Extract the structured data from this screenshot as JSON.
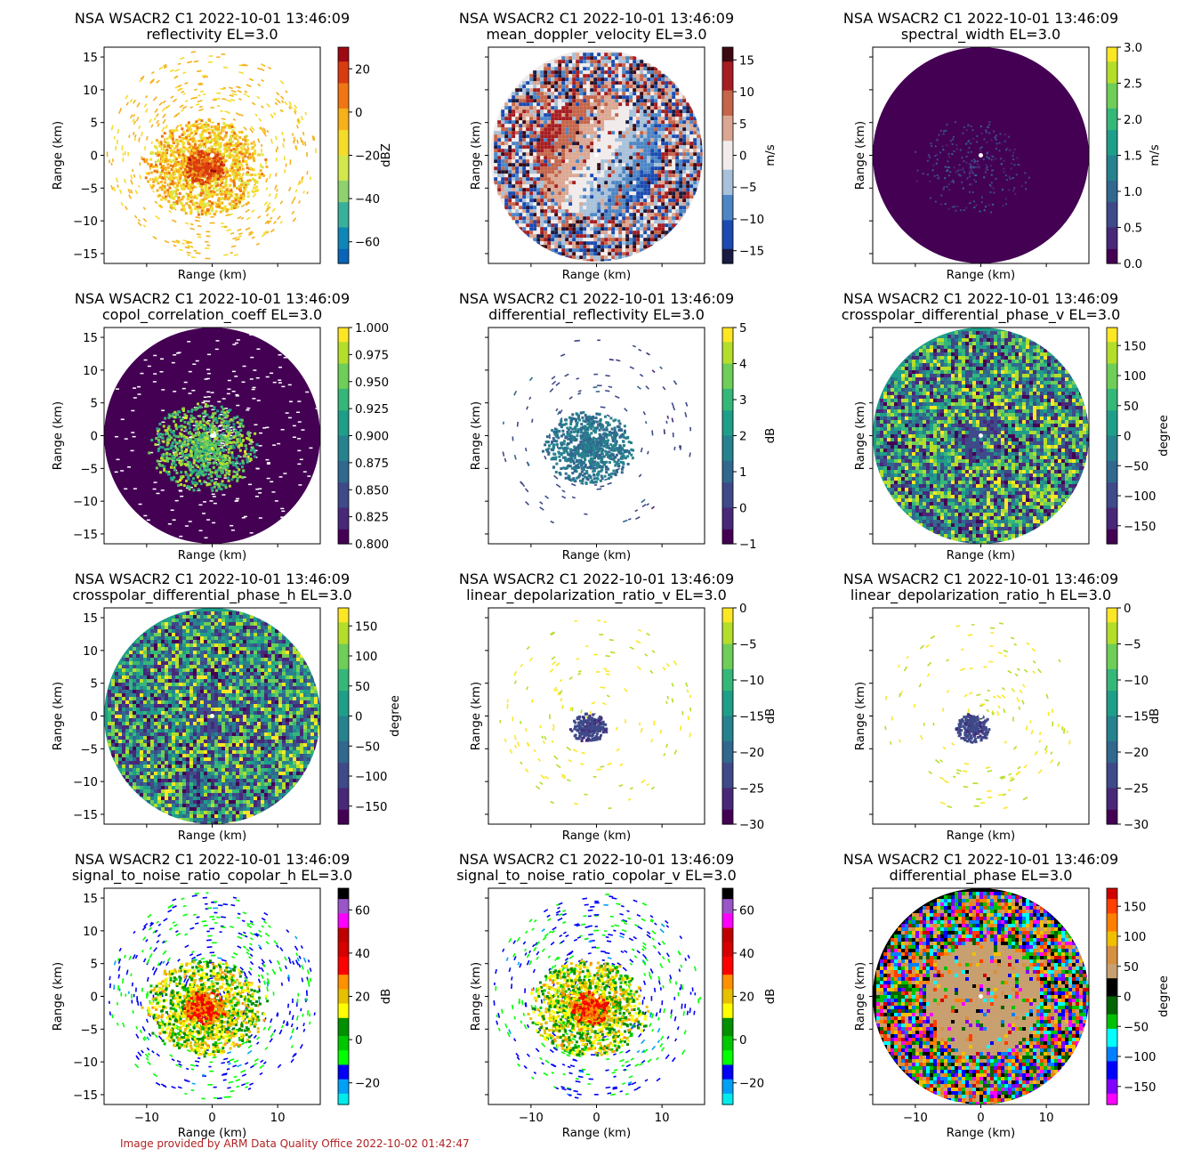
{
  "figure": {
    "footer": "Image provided by ARM Data Quality Office 2022-10-02 01:42:47",
    "footer_color": "#b22222"
  },
  "chart_data": [
    {
      "type": "heatmap",
      "title": "NSA WSACR2 C1 2022-10-01 13:46:09",
      "subtitle": "reflectivity  EL=3.0",
      "xlabel": "Range (km)",
      "ylabel": "Range (km)",
      "xlim": [
        -16.5,
        16.5
      ],
      "ylim": [
        -16.5,
        16.5
      ],
      "radar_range_km": 16.2,
      "colorbar": {
        "label": "dBZ",
        "range": [
          -70,
          30
        ],
        "ticks": [
          -60,
          -40,
          -20,
          0,
          20
        ],
        "colormap": "HomeyerRainbow"
      },
      "pattern": "sparse-core",
      "show_xticklabels": false
    },
    {
      "type": "heatmap",
      "title": "NSA WSACR2 C1 2022-10-01 13:46:09",
      "subtitle": "mean_doppler_velocity  EL=3.0",
      "xlabel": "Range (km)",
      "ylabel": "Range (km)",
      "xlim": [
        -16.5,
        16.5
      ],
      "ylim": [
        -16.5,
        16.5
      ],
      "radar_range_km": 16.2,
      "colorbar": {
        "label": "m/s",
        "range": [
          -17,
          17
        ],
        "ticks": [
          -15,
          -10,
          -5,
          0,
          5,
          10,
          15
        ],
        "colormap": "balance"
      },
      "pattern": "velocity",
      "show_xticklabels": false
    },
    {
      "type": "heatmap",
      "title": "NSA WSACR2 C1 2022-10-01 13:46:09",
      "subtitle": "spectral_width  EL=3.0",
      "xlabel": "Range (km)",
      "ylabel": "Range (km)",
      "xlim": [
        -16.5,
        16.5
      ],
      "ylim": [
        -16.5,
        16.5
      ],
      "radar_range_km": 16.5,
      "colorbar": {
        "label": "m/s",
        "range": [
          0,
          3
        ],
        "ticks": [
          0.0,
          0.5,
          1.0,
          1.5,
          2.0,
          2.5,
          3.0
        ],
        "colormap": "viridis"
      },
      "pattern": "filled-low",
      "show_xticklabels": false
    },
    {
      "type": "heatmap",
      "title": "NSA WSACR2 C1 2022-10-01 13:46:09",
      "subtitle": "copol_correlation_coeff  EL=3.0",
      "xlabel": "Range (km)",
      "ylabel": "Range (km)",
      "xlim": [
        -16.5,
        16.5
      ],
      "ylim": [
        -16.5,
        16.5
      ],
      "radar_range_km": 16.5,
      "colorbar": {
        "label": "",
        "range": [
          0.8,
          1.0
        ],
        "ticks": [
          0.8,
          0.825,
          0.85,
          0.875,
          0.9,
          0.925,
          0.95,
          0.975,
          1.0
        ],
        "colormap": "viridis"
      },
      "pattern": "filled-core",
      "show_xticklabels": false
    },
    {
      "type": "heatmap",
      "title": "NSA WSACR2 C1 2022-10-01 13:46:09",
      "subtitle": "differential_reflectivity  EL=3.0",
      "xlabel": "Range (km)",
      "ylabel": "Range (km)",
      "xlim": [
        -16.5,
        16.5
      ],
      "ylim": [
        -16.5,
        16.5
      ],
      "radar_range_km": 15.0,
      "colorbar": {
        "label": "dB",
        "range": [
          -1,
          5
        ],
        "ticks": [
          -1,
          0,
          1,
          2,
          3,
          4,
          5
        ],
        "colormap": "viridis"
      },
      "pattern": "core-only",
      "show_xticklabels": false
    },
    {
      "type": "heatmap",
      "title": "NSA WSACR2 C1 2022-10-01 13:46:09",
      "subtitle": "crosspolar_differential_phase_v  EL=3.0",
      "xlabel": "Range (km)",
      "ylabel": "Range (km)",
      "xlim": [
        -16.5,
        16.5
      ],
      "ylim": [
        -16.5,
        16.5
      ],
      "radar_range_km": 16.5,
      "colorbar": {
        "label": "degree",
        "range": [
          -180,
          180
        ],
        "ticks": [
          -150,
          -100,
          -50,
          0,
          50,
          100,
          150
        ],
        "colormap": "viridis"
      },
      "pattern": "noise",
      "show_xticklabels": false
    },
    {
      "type": "heatmap",
      "title": "NSA WSACR2 C1 2022-10-01 13:46:09",
      "subtitle": "crosspolar_differential_phase_h  EL=3.0",
      "xlabel": "Range (km)",
      "ylabel": "Range (km)",
      "xlim": [
        -16.5,
        16.5
      ],
      "ylim": [
        -16.5,
        16.5
      ],
      "radar_range_km": 16.5,
      "colorbar": {
        "label": "degree",
        "range": [
          -180,
          180
        ],
        "ticks": [
          -150,
          -100,
          -50,
          0,
          50,
          100,
          150
        ],
        "colormap": "viridis"
      },
      "pattern": "noise",
      "show_xticklabels": false
    },
    {
      "type": "heatmap",
      "title": "NSA WSACR2 C1 2022-10-01 13:46:09",
      "subtitle": "linear_depolarization_ratio_v  EL=3.0",
      "xlabel": "Range (km)",
      "ylabel": "Range (km)",
      "xlim": [
        -16.5,
        16.5
      ],
      "ylim": [
        -16.5,
        16.5
      ],
      "radar_range_km": 15.0,
      "colorbar": {
        "label": "dB",
        "range": [
          -30,
          0
        ],
        "ticks": [
          -30,
          -25,
          -20,
          -15,
          -10,
          -5,
          0
        ],
        "colormap": "viridis"
      },
      "pattern": "tiny-core",
      "show_xticklabels": false
    },
    {
      "type": "heatmap",
      "title": "NSA WSACR2 C1 2022-10-01 13:46:09",
      "subtitle": "linear_depolarization_ratio_h  EL=3.0",
      "xlabel": "Range (km)",
      "ylabel": "Range (km)",
      "xlim": [
        -16.5,
        16.5
      ],
      "ylim": [
        -16.5,
        16.5
      ],
      "radar_range_km": 15.0,
      "colorbar": {
        "label": "dB",
        "range": [
          -30,
          0
        ],
        "ticks": [
          -30,
          -25,
          -20,
          -15,
          -10,
          -5,
          0
        ],
        "colormap": "viridis"
      },
      "pattern": "tiny-core",
      "show_xticklabels": false
    },
    {
      "type": "heatmap",
      "title": "NSA WSACR2 C1 2022-10-01 13:46:09",
      "subtitle": "signal_to_noise_ratio_copolar_h  EL=3.0",
      "xlabel": "Range (km)",
      "ylabel": "Range (km)",
      "xlim": [
        -16.5,
        16.5
      ],
      "ylim": [
        -16.5,
        16.5
      ],
      "radar_range_km": 16.0,
      "colorbar": {
        "label": "dB",
        "range": [
          -30,
          70
        ],
        "ticks": [
          -20,
          0,
          20,
          40,
          60
        ],
        "colormap": "pyart_NWSRef"
      },
      "pattern": "sparse-core",
      "show_xticklabels": true
    },
    {
      "type": "heatmap",
      "title": "NSA WSACR2 C1 2022-10-01 13:46:09",
      "subtitle": "signal_to_noise_ratio_copolar_v  EL=3.0",
      "xlabel": "Range (km)",
      "ylabel": "Range (km)",
      "xlim": [
        -16.5,
        16.5
      ],
      "ylim": [
        -16.5,
        16.5
      ],
      "radar_range_km": 16.0,
      "colorbar": {
        "label": "dB",
        "range": [
          -30,
          70
        ],
        "ticks": [
          -20,
          0,
          20,
          40,
          60
        ],
        "colormap": "pyart_NWSRef"
      },
      "pattern": "sparse-core",
      "show_xticklabels": true
    },
    {
      "type": "heatmap",
      "title": "NSA WSACR2 C1 2022-10-01 13:46:09",
      "subtitle": "differential_phase  EL=3.0",
      "xlabel": "Range (km)",
      "ylabel": "Range (km)",
      "xlim": [
        -16.5,
        16.5
      ],
      "ylim": [
        -16.5,
        16.5
      ],
      "radar_range_km": 16.5,
      "colorbar": {
        "label": "degree",
        "range": [
          -180,
          180
        ],
        "ticks": [
          -150,
          -100,
          -50,
          0,
          50,
          100,
          150
        ],
        "colormap": "Wild25"
      },
      "pattern": "phase",
      "show_xticklabels": true
    }
  ],
  "axis": {
    "x_ticks": [
      -10,
      0,
      10
    ],
    "y_ticks": [
      -15,
      -10,
      -5,
      0,
      5,
      10,
      15
    ]
  }
}
